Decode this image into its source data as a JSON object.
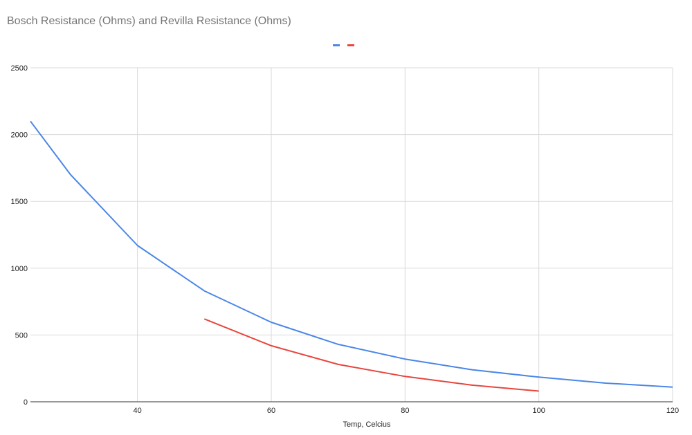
{
  "chart_data": {
    "type": "line",
    "title": "Bosch Resistance (Ohms) and Revilla Resistance (Ohms)",
    "xlabel": "Temp, Celcius",
    "ylabel": "",
    "xlim": [
      24,
      120
    ],
    "ylim": [
      0,
      2500
    ],
    "x_ticks": [
      40,
      60,
      80,
      100,
      120
    ],
    "y_ticks": [
      0,
      500,
      1000,
      1500,
      2000,
      2500
    ],
    "grid": true,
    "legend": "top-center",
    "series": [
      {
        "color": "#4a86e8",
        "x": [
          24,
          30,
          40,
          50,
          60,
          70,
          80,
          90,
          100,
          110,
          120
        ],
        "y": [
          2100,
          1700,
          1170,
          830,
          595,
          430,
          320,
          240,
          185,
          140,
          110
        ]
      },
      {
        "color": "#e8453c",
        "x": [
          50,
          60,
          70,
          80,
          90,
          100
        ],
        "y": [
          620,
          420,
          280,
          190,
          125,
          80
        ]
      }
    ]
  }
}
